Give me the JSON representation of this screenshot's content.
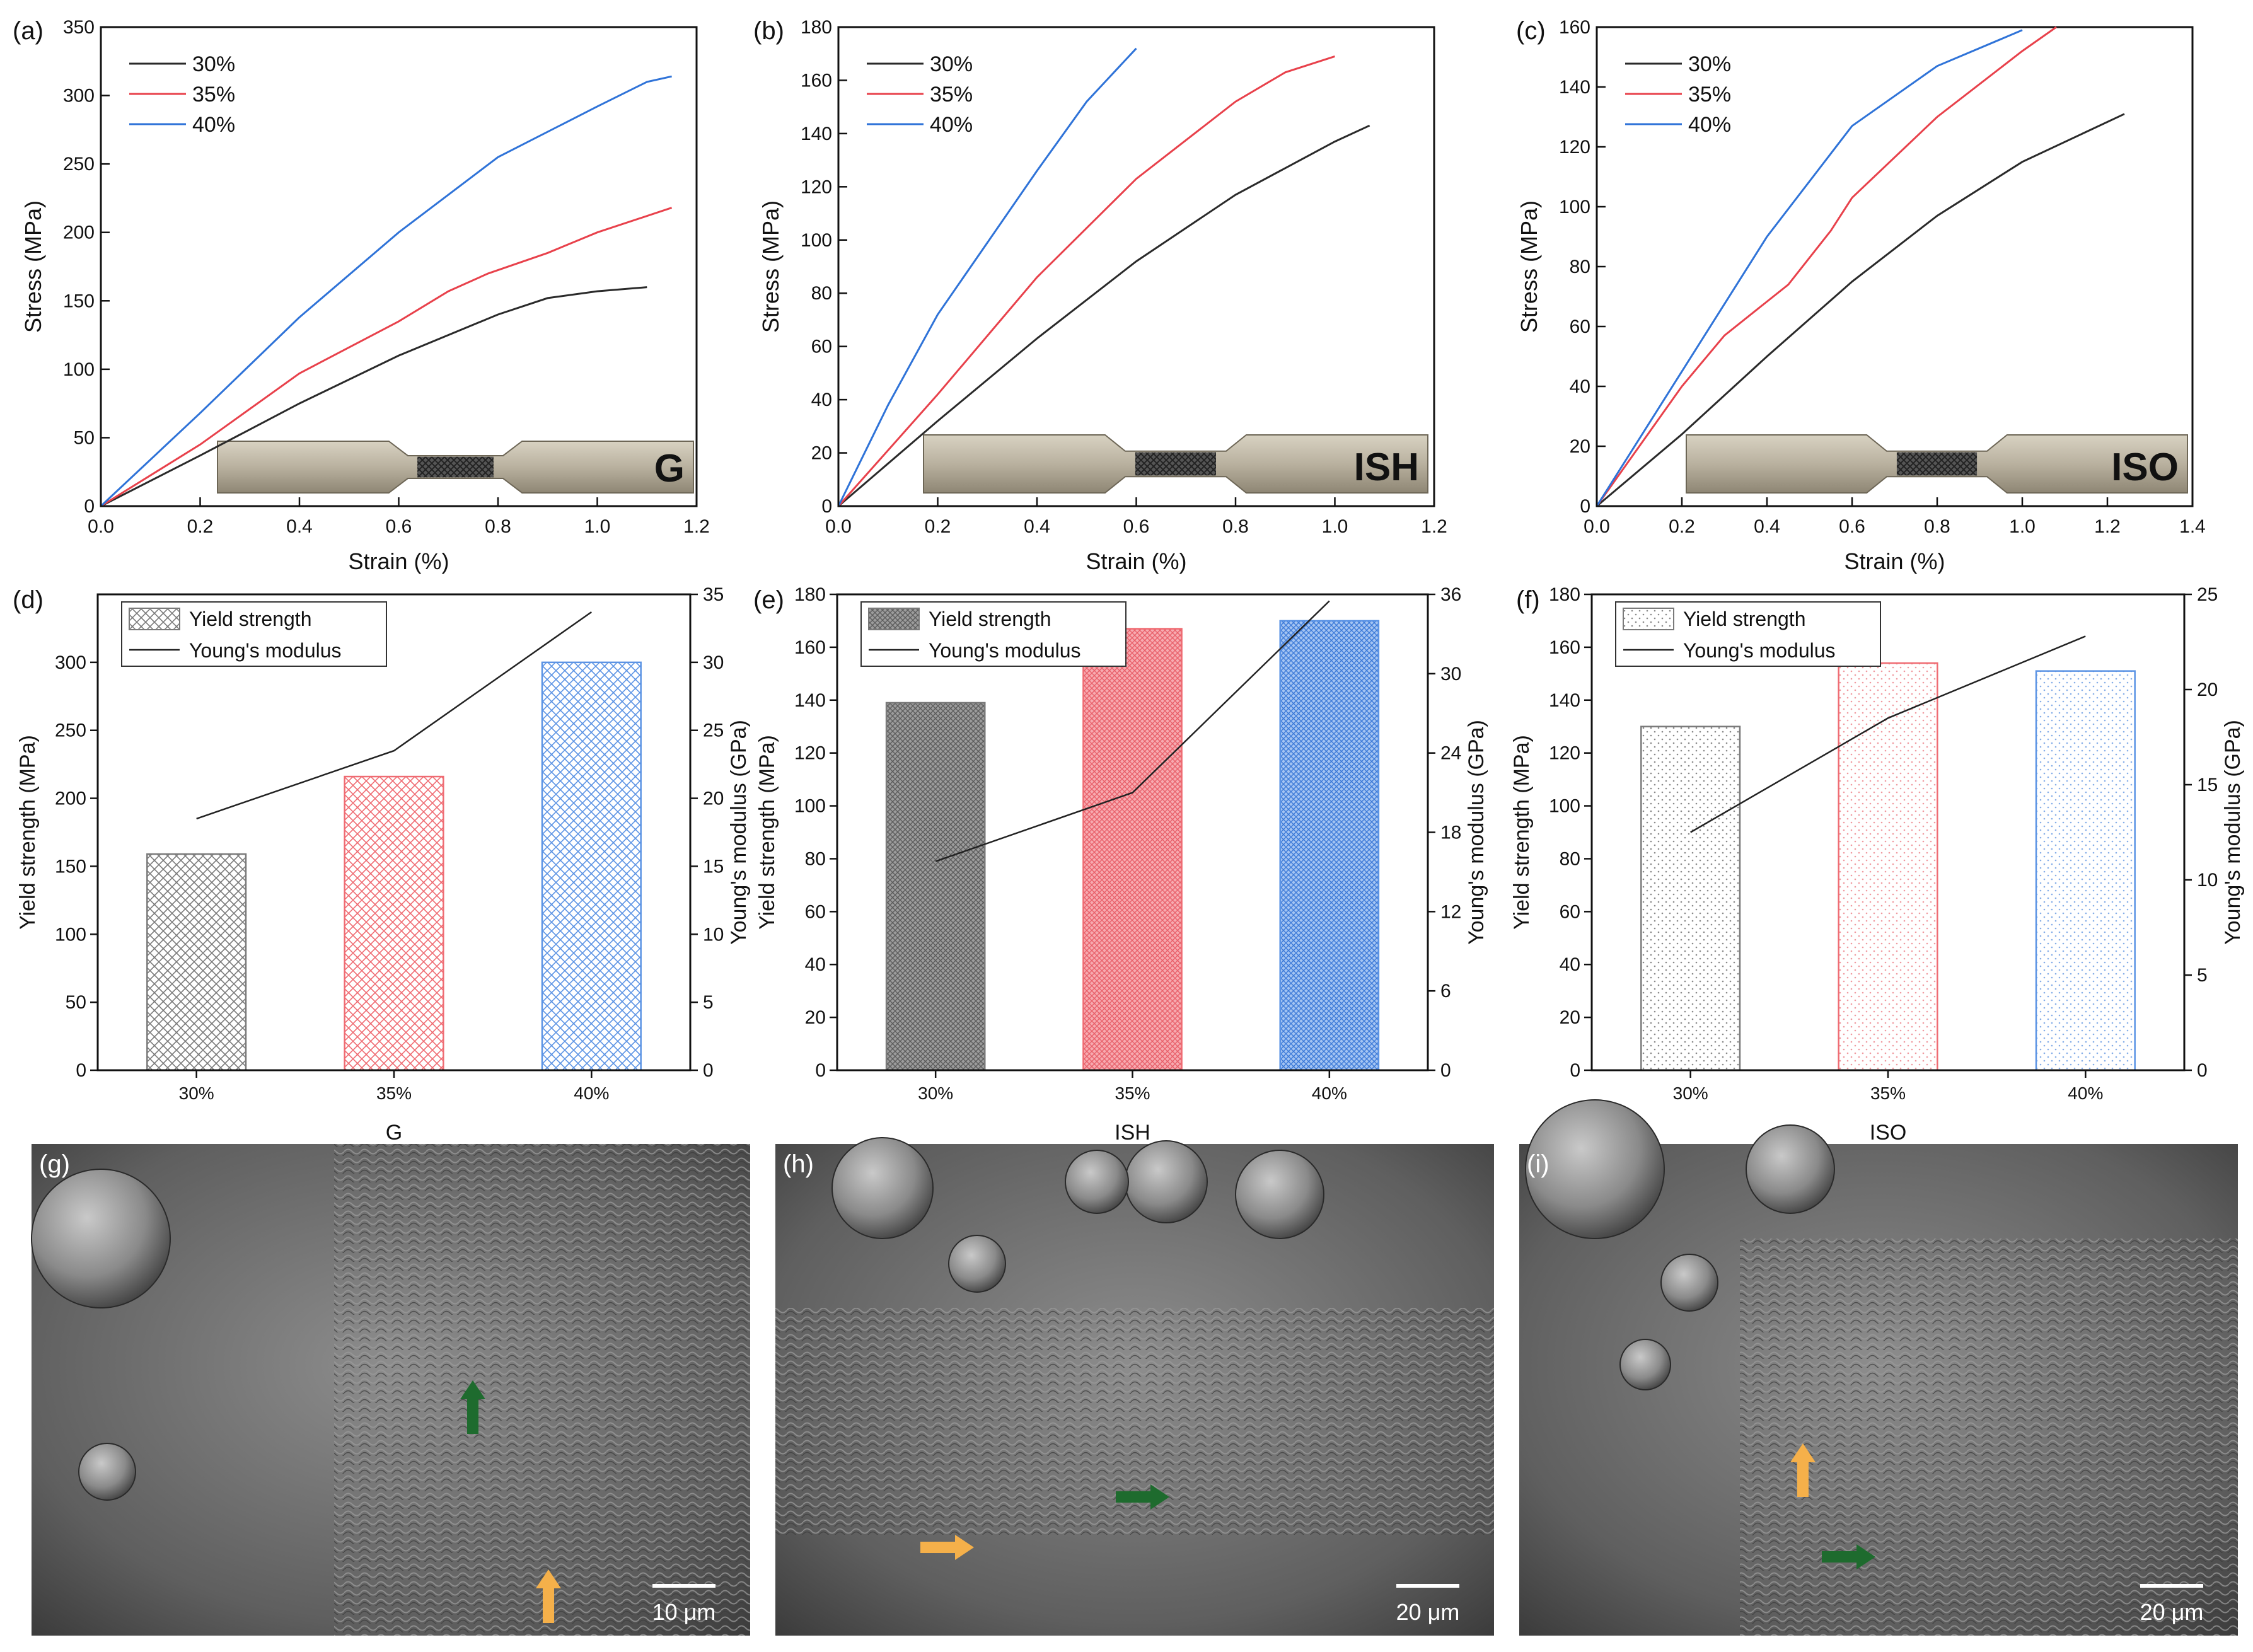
{
  "figure": {
    "panel_labels": [
      "(a)",
      "(b)",
      "(c)",
      "(d)",
      "(e)",
      "(f)",
      "(g)",
      "(h)",
      "(i)"
    ],
    "colors": {
      "s30": "#2a2a2a",
      "s35": "#e8414b",
      "s40": "#2f73d8",
      "bar30": "#7a7a7a",
      "bar35": "#ef6b72",
      "bar40": "#5b93e4",
      "arrow_orange": "#f5b04a",
      "arrow_green": "#1e6b2e"
    },
    "sem": [
      {
        "label": "(g)",
        "scale_bar": "10 μm"
      },
      {
        "label": "(h)",
        "scale_bar": "20 μm"
      },
      {
        "label": "(i)",
        "scale_bar": "20 μm"
      }
    ]
  },
  "chart_data": [
    {
      "id": "a",
      "type": "line",
      "xlabel": "Strain (%)",
      "ylabel": "Stress (MPa)",
      "xlim": [
        0,
        1.2
      ],
      "ylim": [
        0,
        350
      ],
      "xticks": [
        "0.0",
        "0.2",
        "0.4",
        "0.6",
        "0.8",
        "1.0",
        "1.2"
      ],
      "yticks": [
        "0",
        "50",
        "100",
        "150",
        "200",
        "250",
        "300",
        "350"
      ],
      "specimen_label": "G",
      "series": [
        {
          "name": "30%",
          "x": [
            0,
            0.2,
            0.4,
            0.6,
            0.8,
            0.9,
            1.0,
            1.1
          ],
          "y": [
            0,
            37,
            75,
            110,
            140,
            152,
            157,
            160
          ]
        },
        {
          "name": "35%",
          "x": [
            0,
            0.2,
            0.4,
            0.6,
            0.7,
            0.78,
            0.9,
            1.0,
            1.15
          ],
          "y": [
            0,
            45,
            97,
            135,
            157,
            170,
            185,
            200,
            218
          ]
        },
        {
          "name": "40%",
          "x": [
            0,
            0.2,
            0.4,
            0.6,
            0.8,
            1.0,
            1.1,
            1.15
          ],
          "y": [
            0,
            68,
            138,
            200,
            255,
            292,
            310,
            314
          ]
        }
      ]
    },
    {
      "id": "b",
      "type": "line",
      "xlabel": "Strain (%)",
      "ylabel": "Stress (MPa)",
      "xlim": [
        0,
        1.2
      ],
      "ylim": [
        0,
        180
      ],
      "xticks": [
        "0.0",
        "0.2",
        "0.4",
        "0.6",
        "0.8",
        "1.0",
        "1.2"
      ],
      "yticks": [
        "0",
        "20",
        "40",
        "60",
        "80",
        "100",
        "120",
        "140",
        "160",
        "180"
      ],
      "specimen_label": "ISH",
      "series": [
        {
          "name": "30%",
          "x": [
            0,
            0.2,
            0.4,
            0.6,
            0.8,
            1.0,
            1.07
          ],
          "y": [
            0,
            32,
            63,
            92,
            117,
            137,
            143
          ]
        },
        {
          "name": "35%",
          "x": [
            0,
            0.2,
            0.4,
            0.6,
            0.8,
            0.9,
            1.0
          ],
          "y": [
            0,
            42,
            86,
            123,
            152,
            163,
            169
          ]
        },
        {
          "name": "40%",
          "x": [
            0,
            0.1,
            0.2,
            0.3,
            0.4,
            0.5,
            0.6
          ],
          "y": [
            0,
            38,
            72,
            99,
            126,
            152,
            172
          ]
        }
      ]
    },
    {
      "id": "c",
      "type": "line",
      "xlabel": "Strain (%)",
      "ylabel": "Stress (MPa)",
      "xlim": [
        0,
        1.4
      ],
      "ylim": [
        0,
        160
      ],
      "xticks": [
        "0.0",
        "0.2",
        "0.4",
        "0.6",
        "0.8",
        "1.0",
        "1.2",
        "1.4"
      ],
      "yticks": [
        "0",
        "20",
        "40",
        "60",
        "80",
        "100",
        "120",
        "140",
        "160"
      ],
      "specimen_label": "ISO",
      "series": [
        {
          "name": "30%",
          "x": [
            0,
            0.2,
            0.4,
            0.6,
            0.8,
            1.0,
            1.24
          ],
          "y": [
            0,
            24,
            50,
            75,
            97,
            115,
            131
          ]
        },
        {
          "name": "35%",
          "x": [
            0,
            0.2,
            0.3,
            0.45,
            0.55,
            0.6,
            0.8,
            1.0,
            1.08
          ],
          "y": [
            0,
            40,
            57,
            74,
            92,
            103,
            130,
            152,
            160
          ]
        },
        {
          "name": "40%",
          "x": [
            0,
            0.2,
            0.4,
            0.6,
            0.8,
            1.0
          ],
          "y": [
            0,
            45,
            90,
            127,
            147,
            159
          ]
        }
      ]
    },
    {
      "id": "d",
      "type": "bar",
      "categories": [
        "30%",
        "35%",
        "40%"
      ],
      "xlabel": "G",
      "ylabel": "Yield strength (MPa)",
      "ylabel_right": "Young's modulus (GPa)",
      "ylim": [
        0,
        350
      ],
      "ylim_right": [
        0,
        35
      ],
      "yticks": [
        "0",
        "50",
        "100",
        "150",
        "200",
        "250",
        "300"
      ],
      "yticks_right": [
        "0",
        "5",
        "10",
        "15",
        "20",
        "25",
        "30",
        "35"
      ],
      "values": [
        159,
        216,
        300
      ],
      "modulus": [
        18.5,
        23.5,
        33.7
      ],
      "legend": [
        "Yield strength",
        "Young's modulus"
      ],
      "pattern": "crosshatch"
    },
    {
      "id": "e",
      "type": "bar",
      "categories": [
        "30%",
        "35%",
        "40%"
      ],
      "xlabel": "ISH",
      "ylabel": "Yield strength (MPa)",
      "ylabel_right": "Young's modulus (GPa)",
      "ylim": [
        0,
        180
      ],
      "ylim_right": [
        0,
        36
      ],
      "yticks": [
        "0",
        "20",
        "40",
        "60",
        "80",
        "100",
        "120",
        "140",
        "160",
        "180"
      ],
      "yticks_right": [
        "0",
        "6",
        "12",
        "18",
        "24",
        "30",
        "36"
      ],
      "values": [
        139,
        167,
        170
      ],
      "modulus": [
        15.8,
        21.0,
        35.5
      ],
      "legend": [
        "Yield strength",
        "Young's modulus"
      ],
      "pattern": "dense"
    },
    {
      "id": "f",
      "type": "bar",
      "categories": [
        "30%",
        "35%",
        "40%"
      ],
      "xlabel": "ISO",
      "ylabel": "Yield strength (MPa)",
      "ylabel_right": "Young's modulus (GPa)",
      "ylim": [
        0,
        180
      ],
      "ylim_right": [
        0,
        25
      ],
      "yticks": [
        "0",
        "20",
        "40",
        "60",
        "80",
        "100",
        "120",
        "140",
        "160",
        "180"
      ],
      "yticks_right": [
        "0",
        "5",
        "10",
        "15",
        "20",
        "25"
      ],
      "values": [
        130,
        154,
        151
      ],
      "modulus": [
        12.5,
        18.5,
        22.8
      ],
      "legend": [
        "Yield strength",
        "Young's modulus"
      ],
      "pattern": "dots"
    }
  ]
}
